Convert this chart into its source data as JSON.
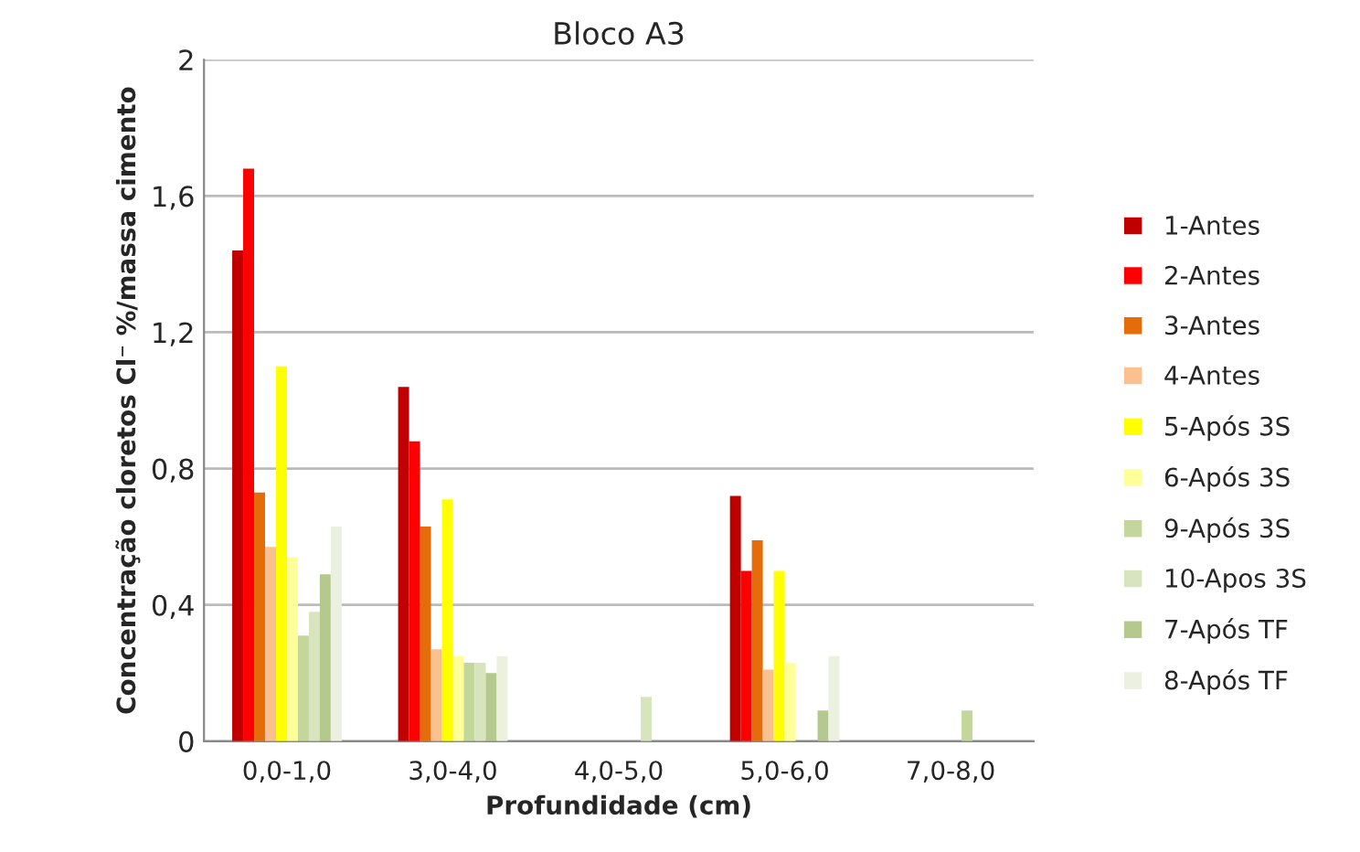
{
  "chart_data": {
    "type": "bar",
    "title": "Bloco A3",
    "xlabel": "Profundidade (cm)",
    "ylabel": "Concentração cloretos Cl⁻ %/massa cimento",
    "categories": [
      "0,0-1,0",
      "3,0-4,0",
      "4,0-5,0",
      "5,0-6,0",
      "7,0-8,0"
    ],
    "series": [
      {
        "name": "1-Antes",
        "color": "#c00000",
        "values": [
          1.44,
          1.04,
          null,
          0.72,
          null
        ]
      },
      {
        "name": "2-Antes",
        "color": "#ff0000",
        "values": [
          1.68,
          0.88,
          null,
          0.5,
          null
        ]
      },
      {
        "name": "3-Antes",
        "color": "#e46c0a",
        "values": [
          0.73,
          0.63,
          null,
          0.59,
          null
        ]
      },
      {
        "name": "4-Antes",
        "color": "#fac090",
        "values": [
          0.57,
          0.27,
          null,
          0.21,
          null
        ]
      },
      {
        "name": "5-Após 3S",
        "color": "#ffff00",
        "values": [
          1.1,
          0.71,
          null,
          0.5,
          null
        ]
      },
      {
        "name": "6-Após 3S",
        "color": "#ffff99",
        "values": [
          0.54,
          0.25,
          null,
          0.23,
          null
        ]
      },
      {
        "name": "9-Após 3S",
        "color": "#c3d69b",
        "values": [
          0.31,
          0.23,
          null,
          null,
          0.09
        ]
      },
      {
        "name": "10-Apos 3S",
        "color": "#d7e4bd",
        "values": [
          0.38,
          0.23,
          0.13,
          null,
          null
        ]
      },
      {
        "name": "7-Após TF",
        "color": "#b5c98e",
        "values": [
          0.49,
          0.2,
          null,
          0.09,
          null
        ]
      },
      {
        "name": "8-Após TF",
        "color": "#ebf1de",
        "values": [
          0.63,
          0.25,
          null,
          0.25,
          null
        ]
      }
    ],
    "ylim": [
      0,
      2
    ],
    "yticks": [
      0,
      {
        "value": 0.4,
        "label": "0,4"
      },
      {
        "value": 0.8,
        "label": "0,8"
      },
      {
        "value": 1.2,
        "label": "1,2"
      },
      {
        "value": 1.6,
        "label": "1,6"
      },
      2
    ],
    "grid": "y",
    "legend": "right"
  }
}
